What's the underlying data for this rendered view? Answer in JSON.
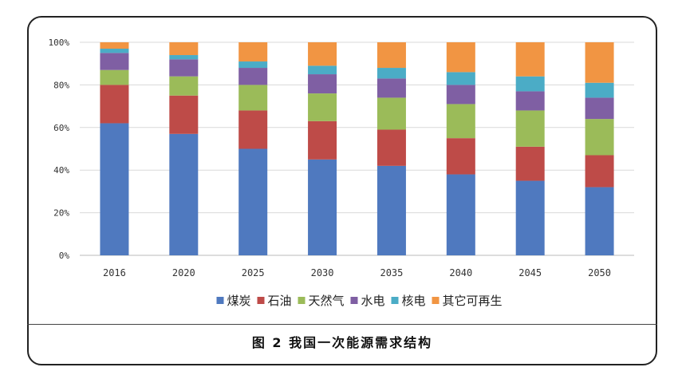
{
  "caption": "图 2 我国一次能源需求结构",
  "chart_data": {
    "type": "bar",
    "stacked": true,
    "categories": [
      "2016",
      "2020",
      "2025",
      "2030",
      "2035",
      "2040",
      "2045",
      "2050"
    ],
    "ylim": [
      0,
      100
    ],
    "yticks": [
      "0%",
      "20%",
      "40%",
      "60%",
      "80%",
      "100%"
    ],
    "grid": true,
    "legend_position": "bottom",
    "series": [
      {
        "name": "煤炭",
        "color": "#4f79bf",
        "values": [
          62,
          57,
          50,
          45,
          42,
          38,
          35,
          32
        ]
      },
      {
        "name": "石油",
        "color": "#be4b48",
        "values": [
          18,
          18,
          18,
          18,
          17,
          17,
          16,
          15
        ]
      },
      {
        "name": "天然气",
        "color": "#9bbb59",
        "values": [
          7,
          9,
          12,
          13,
          15,
          16,
          17,
          17
        ]
      },
      {
        "name": "水电",
        "color": "#7f5fa3",
        "values": [
          8,
          8,
          8,
          9,
          9,
          9,
          9,
          10
        ]
      },
      {
        "name": "核电",
        "color": "#4bacc6",
        "values": [
          2,
          2,
          3,
          4,
          5,
          6,
          7,
          7
        ]
      },
      {
        "name": "其它可再生",
        "color": "#f19543",
        "values": [
          3,
          6,
          9,
          11,
          12,
          14,
          16,
          19
        ]
      }
    ]
  }
}
